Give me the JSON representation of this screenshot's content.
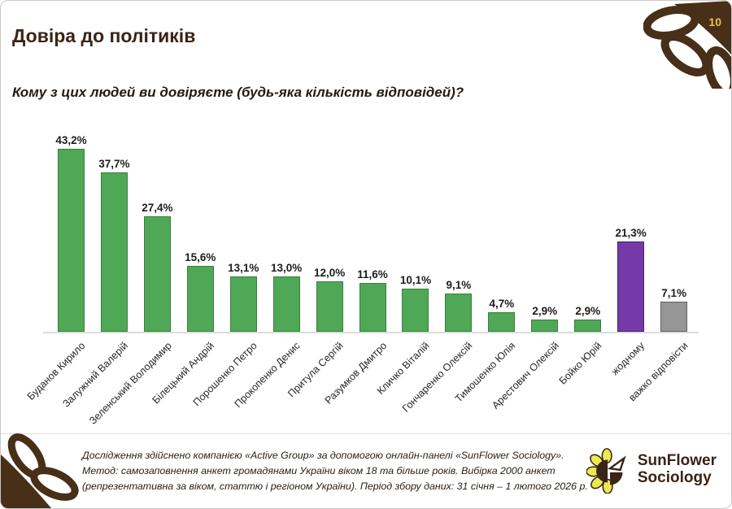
{
  "page_number": "10",
  "title": "Довіра до політиків",
  "subtitle": "Кому з цих людей ви довіряєте (будь-яка кількість відповідей)?",
  "chart_data": {
    "type": "bar",
    "title": "Довіра до політиків",
    "question": "Кому з цих людей ви довіряєте (будь-яка кількість відповідей)?",
    "categories": [
      "Буданов Кирило",
      "Залужний Валерій",
      "Зеленський Володимир",
      "Білецький Андрій",
      "Порошенко Петро",
      "Прокопенко Денис",
      "Притула Сергій",
      "Разумков Дмитро",
      "Кличко Віталій",
      "Гончаренко Олексій",
      "Тимошенко Юлія",
      "Арестович Олексій",
      "Бойко Юрій",
      "жодному",
      "важко відповісти"
    ],
    "values": [
      43.2,
      37.7,
      27.4,
      15.6,
      13.1,
      13.0,
      12.0,
      11.6,
      10.1,
      9.1,
      4.7,
      2.9,
      2.9,
      21.3,
      7.1
    ],
    "value_labels": [
      "43,2%",
      "37,7%",
      "27,4%",
      "15,6%",
      "13,1%",
      "13,0%",
      "12,0%",
      "11,6%",
      "10,1%",
      "9,1%",
      "4,7%",
      "2,9%",
      "2,9%",
      "21,3%",
      "7,1%"
    ],
    "bar_colors": [
      "green",
      "green",
      "green",
      "green",
      "green",
      "green",
      "green",
      "green",
      "green",
      "green",
      "green",
      "green",
      "green",
      "purple",
      "gray"
    ],
    "xlabel": "",
    "ylabel": "",
    "ylim": [
      0,
      45
    ],
    "grid": false,
    "legend": false
  },
  "colors": {
    "green_fill": "#4fa855",
    "green_border": "#3a7e3d",
    "purple_fill": "#7539a8",
    "purple_border": "#45215f",
    "gray_fill": "#969696",
    "gray_border": "#5e5e5e",
    "title_brown": "#3a2417",
    "accent_gold": "#e8c44c",
    "deco_brown": "#472f18",
    "petal_yellow": "#ece94e",
    "axis_line": "#dcdcdc"
  },
  "footer": {
    "line1": "Дослідження здійснено компанією «Active Group» за допомогою онлайн-панелі «SunFlower Sociology».",
    "line2": "Метод: самозаповнення анкет громадянами України віком 18 та більше років. Вибірка 2000 анкет",
    "line3": "(репрезентативна за віком, статтю і регіоном України). Період збору даних: 31 січня – 1 лютого 2026 р."
  },
  "logo": {
    "line1": "SunFlower",
    "line2": "Sociology"
  }
}
